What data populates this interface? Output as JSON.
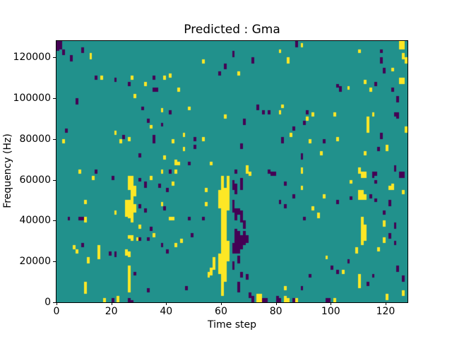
{
  "title": "Predicted : Gma",
  "axes": {
    "xlabel": "Time step",
    "ylabel": "Frequency (Hz)"
  },
  "chart_data": {
    "type": "heatmap",
    "title": "Predicted : Gma",
    "xlabel": "Time step",
    "ylabel": "Frequency (Hz)",
    "x_range": [
      0,
      128
    ],
    "y_range": [
      0,
      128000
    ],
    "grid_size": [
      128,
      128
    ],
    "x_ticks": [
      0,
      20,
      40,
      60,
      80,
      100,
      120
    ],
    "y_ticks": [
      0,
      20000,
      40000,
      60000,
      80000,
      100000,
      120000
    ],
    "grid": false,
    "legend": "none",
    "colors": {
      "low": "#440154",
      "mid": "#21918c",
      "high": "#fde725"
    },
    "background_value": 1,
    "value_colors": {
      "0": "#440154",
      "1": "#21918c",
      "2": "#fde725"
    },
    "span_format": "[time_step, freq_low_kHz, freq_high_kHz]",
    "yellow_spans": [
      [
        12,
        119,
        122
      ],
      [
        16,
        109,
        111
      ],
      [
        27,
        109,
        111
      ],
      [
        39,
        109,
        111
      ],
      [
        41,
        110,
        112
      ],
      [
        32,
        106,
        108
      ],
      [
        44,
        103,
        105
      ],
      [
        28,
        100,
        102
      ],
      [
        38,
        93,
        95
      ],
      [
        48,
        94,
        96
      ],
      [
        61,
        90,
        92
      ],
      [
        34,
        85,
        87
      ],
      [
        2,
        78,
        80
      ],
      [
        21,
        82,
        84
      ],
      [
        23,
        78,
        80
      ],
      [
        26,
        79,
        81
      ],
      [
        42,
        78,
        80
      ],
      [
        46,
        81,
        83
      ],
      [
        53,
        79,
        81
      ],
      [
        46,
        74,
        76
      ],
      [
        39,
        70,
        72
      ],
      [
        43,
        67,
        70
      ],
      [
        44,
        67,
        69
      ],
      [
        56,
        67,
        69
      ],
      [
        8,
        63,
        65
      ],
      [
        38,
        63,
        65
      ],
      [
        43,
        63,
        65
      ],
      [
        53,
        117,
        119
      ],
      [
        89,
        125,
        127
      ],
      [
        125,
        124,
        128
      ],
      [
        126,
        124,
        128
      ],
      [
        81,
        122,
        124
      ],
      [
        110,
        122,
        124
      ],
      [
        84,
        117,
        120
      ],
      [
        126,
        119,
        122
      ],
      [
        127,
        117,
        120
      ],
      [
        122,
        113,
        115
      ],
      [
        66,
        111,
        113
      ],
      [
        125,
        107,
        110
      ],
      [
        126,
        107,
        110
      ],
      [
        112,
        107,
        109
      ],
      [
        106,
        104,
        106
      ],
      [
        114,
        103,
        105
      ],
      [
        82,
        95,
        97
      ],
      [
        81,
        92,
        94
      ],
      [
        93,
        91,
        93
      ],
      [
        101,
        91,
        93
      ],
      [
        115,
        91,
        93
      ],
      [
        91,
        89,
        91
      ],
      [
        113,
        83,
        91
      ],
      [
        85,
        81,
        83
      ],
      [
        92,
        78,
        80
      ],
      [
        102,
        79,
        81
      ],
      [
        96,
        72,
        74
      ],
      [
        112,
        72,
        74
      ],
      [
        127,
        83,
        86
      ],
      [
        120,
        74,
        77
      ],
      [
        69,
        63,
        67
      ],
      [
        89,
        63,
        66
      ],
      [
        110,
        63,
        66
      ],
      [
        111,
        61,
        64
      ],
      [
        112,
        61,
        64
      ],
      [
        13,
        60,
        62
      ],
      [
        26,
        55,
        62
      ],
      [
        27,
        49,
        62
      ],
      [
        28,
        52,
        57
      ],
      [
        34,
        60,
        62
      ],
      [
        42,
        57,
        59
      ],
      [
        54,
        54,
        56
      ],
      [
        10,
        48,
        50
      ],
      [
        25,
        42,
        50
      ],
      [
        26,
        41,
        50
      ],
      [
        27,
        40,
        49
      ],
      [
        28,
        44,
        48
      ],
      [
        21,
        43,
        45
      ],
      [
        38,
        47,
        49
      ],
      [
        10,
        39,
        42
      ],
      [
        41,
        40,
        42
      ],
      [
        42,
        40,
        42
      ],
      [
        27,
        39,
        41
      ],
      [
        54,
        47,
        49
      ],
      [
        30,
        36,
        38
      ],
      [
        35,
        32,
        34
      ],
      [
        26,
        31,
        33
      ],
      [
        27,
        30,
        33
      ],
      [
        29,
        30,
        32
      ],
      [
        45,
        29,
        31
      ],
      [
        43,
        27,
        29
      ],
      [
        6,
        26,
        28
      ],
      [
        7,
        24,
        26
      ],
      [
        15,
        21,
        28
      ],
      [
        11,
        19,
        22
      ],
      [
        25,
        23,
        26
      ],
      [
        26,
        22,
        25
      ],
      [
        10,
        4,
        10
      ],
      [
        17,
        0,
        2
      ],
      [
        22,
        0,
        3
      ],
      [
        26,
        5,
        18
      ],
      [
        55,
        12,
        15
      ],
      [
        56,
        13,
        17
      ],
      [
        57,
        16,
        22
      ],
      [
        59,
        46,
        55
      ],
      [
        59,
        14,
        24
      ],
      [
        60,
        3,
        62
      ],
      [
        61,
        10,
        56
      ],
      [
        62,
        45,
        62
      ],
      [
        62,
        20,
        30
      ],
      [
        70,
        62,
        64
      ],
      [
        89,
        55,
        57
      ],
      [
        97,
        51,
        53
      ],
      [
        107,
        58,
        60
      ],
      [
        93,
        45,
        47
      ],
      [
        95,
        41,
        44
      ],
      [
        110,
        50,
        55
      ],
      [
        111,
        50,
        55
      ],
      [
        112,
        50,
        53
      ],
      [
        121,
        55,
        57
      ],
      [
        122,
        55,
        58
      ],
      [
        126,
        53,
        55
      ],
      [
        111,
        28,
        42
      ],
      [
        112,
        30,
        38
      ],
      [
        109,
        24,
        27
      ],
      [
        117,
        25,
        27
      ],
      [
        98,
        21,
        23
      ],
      [
        104,
        14,
        16
      ],
      [
        110,
        7,
        14
      ],
      [
        83,
        6,
        8
      ],
      [
        73,
        0,
        4
      ],
      [
        74,
        0,
        4
      ],
      [
        83,
        0,
        3
      ],
      [
        84,
        0,
        2
      ],
      [
        87,
        0,
        2
      ],
      [
        101,
        0,
        2
      ],
      [
        126,
        3,
        6
      ],
      [
        120,
        1,
        4
      ],
      [
        119,
        37,
        40
      ],
      [
        119,
        29,
        32
      ]
    ],
    "purple_spans": [
      [
        0,
        123,
        128
      ],
      [
        1,
        124,
        128
      ],
      [
        2,
        121,
        124
      ],
      [
        5,
        118,
        121
      ],
      [
        9,
        122,
        125
      ],
      [
        61,
        114,
        117
      ],
      [
        59,
        111,
        113
      ],
      [
        14,
        109,
        111
      ],
      [
        21,
        108,
        110
      ],
      [
        35,
        109,
        111
      ],
      [
        26,
        106,
        108
      ],
      [
        35,
        103,
        105
      ],
      [
        36,
        103,
        105
      ],
      [
        7,
        97,
        100
      ],
      [
        31,
        94,
        96
      ],
      [
        41,
        92,
        94
      ],
      [
        33,
        88,
        90
      ],
      [
        38,
        86,
        88
      ],
      [
        3,
        83,
        85
      ],
      [
        24,
        80,
        82
      ],
      [
        35,
        78,
        82
      ],
      [
        50,
        79,
        81
      ],
      [
        50,
        75,
        77
      ],
      [
        30,
        71,
        73
      ],
      [
        48,
        67,
        69
      ],
      [
        14,
        63,
        65
      ],
      [
        41,
        63,
        65
      ],
      [
        87,
        125,
        128
      ],
      [
        64,
        120,
        123
      ],
      [
        118,
        122,
        124
      ],
      [
        118,
        117,
        120
      ],
      [
        71,
        117,
        120
      ],
      [
        119,
        112,
        115
      ],
      [
        116,
        106,
        108
      ],
      [
        102,
        105,
        107
      ],
      [
        103,
        103,
        106
      ],
      [
        122,
        103,
        105
      ],
      [
        124,
        98,
        101
      ],
      [
        73,
        94,
        97
      ],
      [
        75,
        92,
        94
      ],
      [
        77,
        92,
        94
      ],
      [
        91,
        92,
        94
      ],
      [
        123,
        91,
        93
      ],
      [
        124,
        90,
        93
      ],
      [
        68,
        87,
        90
      ],
      [
        90,
        87,
        89
      ],
      [
        86,
        84,
        86
      ],
      [
        118,
        80,
        83
      ],
      [
        82,
        78,
        81
      ],
      [
        97,
        78,
        80
      ],
      [
        67,
        75,
        78
      ],
      [
        117,
        74,
        76
      ],
      [
        89,
        70,
        73
      ],
      [
        65,
        63,
        65
      ],
      [
        77,
        63,
        65
      ],
      [
        79,
        62,
        64
      ],
      [
        116,
        62,
        64
      ],
      [
        123,
        64,
        67
      ],
      [
        125,
        61,
        64
      ],
      [
        126,
        61,
        64
      ],
      [
        20,
        60,
        62
      ],
      [
        30,
        59,
        61
      ],
      [
        32,
        56,
        59
      ],
      [
        37,
        56,
        58
      ],
      [
        40,
        54,
        56
      ],
      [
        30,
        46,
        48
      ],
      [
        32,
        44,
        46
      ],
      [
        39,
        45,
        47
      ],
      [
        4,
        40,
        42
      ],
      [
        8,
        40,
        42
      ],
      [
        9,
        40,
        42
      ],
      [
        48,
        40,
        42
      ],
      [
        53,
        40,
        42
      ],
      [
        34,
        35,
        37
      ],
      [
        30,
        30,
        32
      ],
      [
        33,
        30,
        32
      ],
      [
        49,
        32,
        34
      ],
      [
        38,
        27,
        29
      ],
      [
        40,
        24,
        26
      ],
      [
        9,
        27,
        29
      ],
      [
        19,
        23,
        25
      ],
      [
        21,
        22,
        25
      ],
      [
        28,
        13,
        15
      ],
      [
        33,
        5,
        7
      ],
      [
        47,
        6,
        8
      ],
      [
        20,
        0,
        2
      ],
      [
        26,
        0,
        2
      ],
      [
        27,
        0,
        1
      ],
      [
        64,
        55,
        60
      ],
      [
        65,
        53,
        58
      ],
      [
        64,
        44,
        50
      ],
      [
        65,
        40,
        46
      ],
      [
        64,
        24,
        29
      ],
      [
        65,
        24,
        36
      ],
      [
        66,
        24,
        35
      ],
      [
        67,
        26,
        33
      ],
      [
        68,
        28,
        35
      ],
      [
        69,
        29,
        33
      ],
      [
        64,
        16,
        20
      ],
      [
        66,
        19,
        23
      ],
      [
        66,
        5,
        10
      ],
      [
        67,
        12,
        15
      ],
      [
        69,
        11,
        14
      ],
      [
        68,
        36,
        40
      ],
      [
        67,
        39,
        45
      ],
      [
        66,
        43,
        46
      ],
      [
        67,
        55,
        61
      ],
      [
        70,
        2,
        5
      ],
      [
        71,
        0,
        3
      ],
      [
        78,
        62,
        64
      ],
      [
        83,
        57,
        59
      ],
      [
        86,
        51,
        53
      ],
      [
        81,
        48,
        50
      ],
      [
        83,
        46,
        48
      ],
      [
        90,
        40,
        42
      ],
      [
        102,
        48,
        50
      ],
      [
        107,
        50,
        52
      ],
      [
        114,
        51,
        53
      ],
      [
        116,
        49,
        51
      ],
      [
        115,
        61,
        64
      ],
      [
        116,
        58,
        60
      ],
      [
        119,
        43,
        45
      ],
      [
        123,
        36,
        39
      ],
      [
        121,
        31,
        34
      ],
      [
        121,
        47,
        50
      ],
      [
        123,
        28,
        30
      ],
      [
        92,
        12,
        14
      ],
      [
        100,
        16,
        18
      ],
      [
        102,
        14,
        16
      ],
      [
        106,
        19,
        21
      ],
      [
        113,
        8,
        10
      ],
      [
        115,
        12,
        14
      ],
      [
        89,
        6,
        8
      ],
      [
        75,
        0,
        2
      ],
      [
        76,
        0,
        2
      ],
      [
        80,
        0,
        3
      ],
      [
        81,
        0,
        2
      ],
      [
        86,
        0,
        2
      ],
      [
        98,
        0,
        2
      ],
      [
        99,
        0,
        2
      ],
      [
        124,
        15,
        18
      ],
      [
        126,
        10,
        13
      ]
    ]
  }
}
